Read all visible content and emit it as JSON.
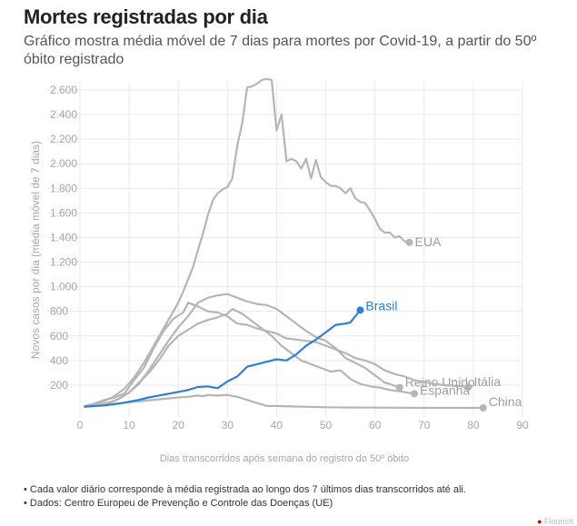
{
  "header": {
    "title": "Mortes registradas por dia",
    "subtitle": "Gráfico mostra média móvel de 7 dias para mortes por Covid-19, a partir do 50º óbito registrado"
  },
  "notes": [
    "• Cada valor diário corresponde à média registrada ao longo dos 7 últimos dias transcorridos até ali.",
    "• Dados: Centro Europeu de Prevenção e Controle das Doenças (UE)"
  ],
  "logo": {
    "mark": "●",
    "text": "Flourish"
  },
  "colors": {
    "highlight": "#2f7ed8",
    "muted": "#b5b5b5",
    "muted_label": "#9e9e9e"
  },
  "chart_data": {
    "type": "line",
    "title": "Mortes registradas por dia",
    "xlabel": "Dias transcorridos após semana do registro do 50º óbito",
    "ylabel": "Novos casos por dia (média móvel de 7 dias)",
    "xlim": [
      0,
      90
    ],
    "ylim": [
      0,
      2700
    ],
    "x_ticks": [
      0,
      10,
      20,
      30,
      40,
      50,
      60,
      70,
      80,
      90
    ],
    "x_tick_labels": [
      "0",
      "10",
      "20",
      "30",
      "40",
      "50",
      "60",
      "70",
      "80",
      "90"
    ],
    "y_ticks": [
      200,
      400,
      600,
      800,
      1000,
      1200,
      1400,
      1600,
      1800,
      2000,
      2200,
      2400,
      2600
    ],
    "y_tick_labels": [
      "200",
      "400",
      "600",
      "800",
      "1.000",
      "1.200",
      "1.400",
      "1.600",
      "1.800",
      "2.000",
      "2.200",
      "2.400",
      "2.600"
    ],
    "grid": true,
    "legend": "direct-labels-at-line-ends",
    "series": [
      {
        "name": "EUA",
        "highlight": false,
        "x": [
          1,
          3,
          5,
          7,
          9,
          11,
          13,
          15,
          17,
          19,
          20,
          21,
          22,
          23,
          24,
          25,
          26,
          27,
          28,
          29,
          30,
          31,
          32,
          33,
          34,
          35,
          36,
          37,
          38,
          39,
          40,
          41,
          42,
          43,
          44,
          45,
          46,
          47,
          48,
          49,
          50,
          51,
          52,
          53,
          54,
          55,
          56,
          57,
          58,
          59,
          60,
          61,
          62,
          63,
          64,
          65,
          66,
          67
        ],
        "y": [
          30,
          45,
          70,
          110,
          170,
          260,
          380,
          520,
          660,
          800,
          870,
          960,
          1060,
          1160,
          1300,
          1430,
          1580,
          1700,
          1760,
          1790,
          1810,
          1880,
          2150,
          2330,
          2620,
          2630,
          2650,
          2680,
          2690,
          2680,
          2270,
          2400,
          2020,
          2040,
          2020,
          1960,
          2040,
          1880,
          2030,
          1890,
          1850,
          1820,
          1820,
          1800,
          1760,
          1800,
          1720,
          1690,
          1680,
          1620,
          1550,
          1470,
          1440,
          1440,
          1400,
          1410,
          1370,
          1360
        ]
      },
      {
        "name": "Brasil",
        "highlight": true,
        "x": [
          1,
          5,
          8,
          10,
          12,
          14,
          16,
          18,
          20,
          22,
          24,
          26,
          28,
          30,
          32,
          34,
          36,
          38,
          40,
          42,
          44,
          46,
          48,
          50,
          52,
          54,
          55,
          57
        ],
        "y": [
          25,
          35,
          50,
          65,
          80,
          100,
          115,
          130,
          145,
          160,
          185,
          190,
          175,
          230,
          270,
          350,
          370,
          390,
          410,
          400,
          450,
          520,
          570,
          630,
          690,
          700,
          710,
          810
        ]
      },
      {
        "name": "Reino Unido",
        "highlight": false,
        "x": [
          1,
          4,
          6,
          8,
          10,
          12,
          14,
          16,
          18,
          20,
          22,
          24,
          26,
          28,
          30,
          32,
          34,
          36,
          38,
          40,
          42,
          44,
          46,
          48,
          50,
          52,
          54,
          56,
          58,
          60,
          61,
          62,
          63,
          65
        ],
        "y": [
          25,
          35,
          55,
          90,
          140,
          210,
          320,
          440,
          560,
          670,
          760,
          870,
          910,
          930,
          940,
          910,
          880,
          860,
          850,
          820,
          760,
          700,
          640,
          590,
          560,
          500,
          420,
          380,
          340,
          280,
          250,
          220,
          210,
          180
        ]
      },
      {
        "name": "Itália",
        "highlight": false,
        "x": [
          1,
          3,
          5,
          7,
          9,
          11,
          13,
          15,
          17,
          19,
          21,
          22,
          24,
          26,
          28,
          30,
          32,
          34,
          36,
          38,
          40,
          42,
          44,
          46,
          48,
          50,
          52,
          54,
          56,
          58,
          60,
          62,
          64,
          66,
          68,
          70,
          72,
          74,
          76,
          79
        ],
        "y": [
          30,
          50,
          80,
          100,
          130,
          240,
          340,
          500,
          640,
          740,
          790,
          870,
          840,
          800,
          790,
          760,
          700,
          690,
          660,
          640,
          620,
          580,
          570,
          560,
          550,
          520,
          490,
          460,
          420,
          400,
          370,
          320,
          290,
          270,
          240,
          225,
          210,
          200,
          195,
          185
        ]
      },
      {
        "name": "Espanha",
        "highlight": false,
        "x": [
          1,
          4,
          6,
          8,
          10,
          12,
          14,
          16,
          18,
          20,
          22,
          24,
          26,
          28,
          30,
          31,
          33,
          35,
          37,
          39,
          41,
          43,
          45,
          47,
          49,
          51,
          53,
          55,
          57,
          59,
          61,
          63,
          65,
          68
        ],
        "y": [
          25,
          40,
          60,
          90,
          140,
          220,
          300,
          400,
          520,
          600,
          650,
          700,
          730,
          750,
          780,
          820,
          780,
          720,
          660,
          600,
          520,
          460,
          400,
          370,
          340,
          310,
          320,
          250,
          210,
          190,
          180,
          160,
          150,
          130
        ]
      },
      {
        "name": "China",
        "highlight": false,
        "x": [
          1,
          5,
          10,
          15,
          20,
          22,
          24,
          25,
          26,
          28,
          30,
          32,
          34,
          36,
          38,
          40,
          45,
          50,
          55,
          60,
          65,
          70,
          75,
          82
        ],
        "y": [
          25,
          40,
          60,
          80,
          100,
          105,
          115,
          110,
          120,
          115,
          120,
          105,
          80,
          55,
          30,
          30,
          25,
          20,
          18,
          17,
          16,
          15,
          15,
          15
        ]
      }
    ]
  }
}
